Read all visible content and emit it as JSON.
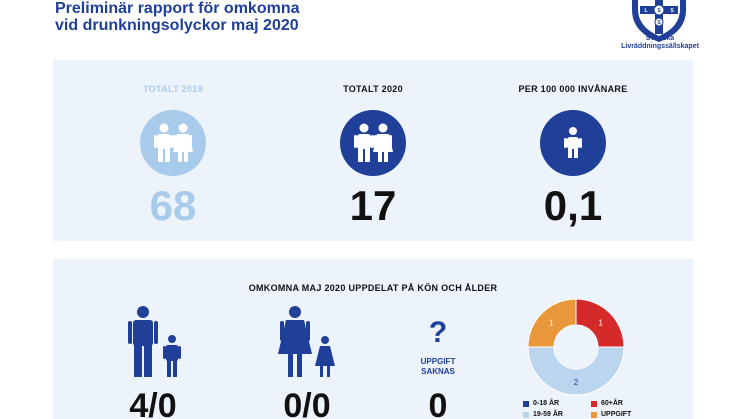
{
  "header": {
    "title_line1": "Preliminär rapport för omkomna",
    "title_line2": "vid drunkningsolyckor maj 2020",
    "logo_line1": "Svenska",
    "logo_line2": "Livräddningssällskapet",
    "logo_letters": [
      "S",
      "L",
      "S",
      "S"
    ]
  },
  "stats": [
    {
      "label": "TOTALT 2019",
      "value": "68",
      "icon": "people-couple-icon"
    },
    {
      "label": "TOTALT 2020",
      "value": "17",
      "icon": "people-couple-icon"
    },
    {
      "label": "PER 100 000 INVÅNARE",
      "value": "0,1",
      "icon": "person-icon"
    }
  ],
  "breakdown": {
    "title": "OMKOMNA MAJ 2020 UPPDELAT PÅ KÖN OCH ÅLDER",
    "men_value": "4/0",
    "women_value": "0/0",
    "unknown_label_line1": "UPPGIFT",
    "unknown_label_line2": "SAKNAS",
    "unknown_mark": "?",
    "unknown_value": "0"
  },
  "colors": {
    "navy": "#1f3f99",
    "light_blue": "#a9cbeb",
    "panel_bg": "#edf3fa",
    "red": "#d42a2a",
    "orange": "#e8983a",
    "pale_blue": "#bcd5ee"
  },
  "chart_data": {
    "type": "pie",
    "variant": "donut",
    "slices": [
      {
        "label": "0-18 ÅR",
        "value": 0,
        "color": "#1f3f99"
      },
      {
        "label": "60+ÅR",
        "value": 1,
        "color": "#d42a2a"
      },
      {
        "label": "19-59 ÅR",
        "value": 2,
        "color": "#bcd5ee"
      },
      {
        "label": "UPPGIFT",
        "value": 1,
        "color": "#e8983a"
      }
    ],
    "legend_placement": "bottom"
  }
}
